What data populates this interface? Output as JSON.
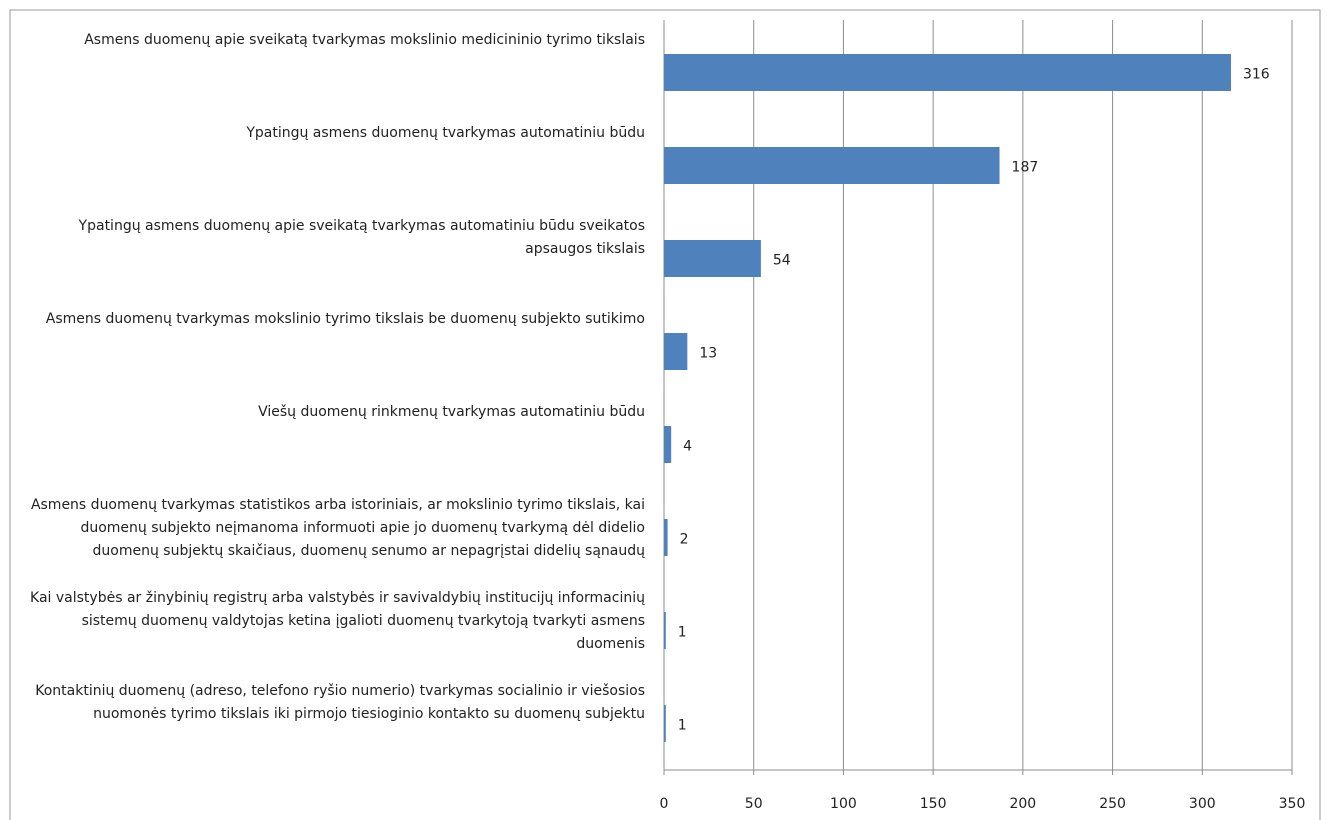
{
  "chart_data": {
    "type": "barh",
    "categories": [
      "Asmens duomenų apie sveikatą tvarkymas mokslinio medicininio tyrimo tikslais",
      "Ypatingų asmens duomenų tvarkymas automatiniu būdu",
      "Ypatingų asmens duomenų apie sveikatą tvarkymas automatiniu būdu sveikatos apsaugos tikslais",
      "Asmens duomenų tvarkymas mokslinio tyrimo tikslais be duomenų subjekto sutikimo",
      "Viešų duomenų rinkmenų tvarkymas automatiniu būdu",
      "Asmens duomenų tvarkymas statistikos arba istoriniais, ar mokslinio tyrimo tikslais, kai duomenų subjekto neįmanoma informuoti apie jo duomenų tvarkymą dėl didelio duomenų subjektų skaičiaus, duomenų senumo ar nepagrįstai didelių sąnaudų",
      "Kai valstybės ar žinybinių registrų arba valstybės ir savivaldybių institucijų informacinių sistemų duomenų valdytojas ketina įgalioti duomenų tvarkytoją tvarkyti asmens duomenis",
      "Kontaktinių duomenų (adreso, telefono ryšio numerio) tvarkymas socialinio ir viešosios nuomonės tyrimo tikslais iki pirmojo tiesioginio kontakto su duomenų subjektu"
    ],
    "values": [
      316,
      187,
      54,
      13,
      4,
      2,
      1,
      1
    ],
    "color": "#4f81bd",
    "xlim": [
      0,
      350
    ],
    "xticks": [
      0,
      50,
      100,
      150,
      200,
      250,
      300,
      350
    ],
    "grid": true
  }
}
